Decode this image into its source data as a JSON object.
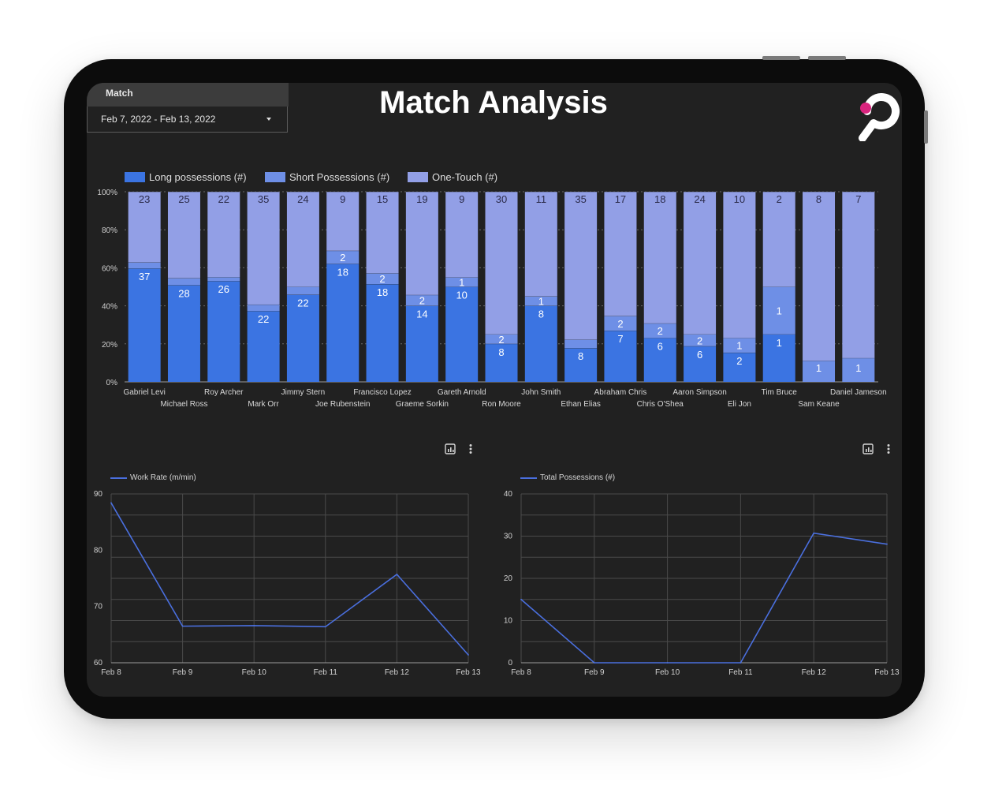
{
  "filter": {
    "label": "Match",
    "value": "Feb 7, 2022 - Feb 13, 2022"
  },
  "page": {
    "title": "Match Analysis"
  },
  "colors": {
    "background": "#212121",
    "long_possessions": "#3b74e2",
    "short_possessions": "#6e8fe6",
    "one_touch": "#929fe6",
    "line_series": "#4a6fde",
    "logo_accent": "#d9247e"
  },
  "chart_data": [
    {
      "type": "bar",
      "stacking": "percent",
      "categories": [
        "Gabriel Levi",
        "Michael Ross",
        "Roy Archer",
        "Mark Orr",
        "Jimmy Stern",
        "Joe Rubenstein",
        "Francisco Lopez",
        "Graeme Sorkin",
        "Gareth Arnold",
        "Ron Moore",
        "John Smith",
        "Ethan Elias",
        "Abraham Chris",
        "Chris O'Shea",
        "Aaron Simpson",
        "Eli Jon",
        "Tim Bruce",
        "Sam Keane",
        "Daniel Jameson"
      ],
      "series": [
        {
          "name": "Long possessions (#)",
          "values": [
            37,
            28,
            26,
            22,
            22,
            18,
            18,
            14,
            10,
            8,
            8,
            8,
            7,
            6,
            6,
            2,
            1,
            0,
            0
          ]
        },
        {
          "name": "Short Possessions (#)",
          "values": [
            2,
            2,
            1,
            2,
            2,
            2,
            2,
            2,
            1,
            2,
            1,
            2,
            2,
            2,
            2,
            1,
            1,
            1,
            1
          ]
        },
        {
          "name": "One-Touch (#)",
          "values": [
            23,
            25,
            22,
            35,
            24,
            9,
            15,
            19,
            9,
            30,
            11,
            35,
            17,
            18,
            24,
            10,
            2,
            8,
            7
          ]
        }
      ],
      "ylim": [
        0,
        100
      ],
      "y_ticks": [
        "0%",
        "20%",
        "40%",
        "60%",
        "80%",
        "100%"
      ],
      "legend_position": "top-left",
      "grid": true
    },
    {
      "type": "line",
      "x": [
        "Feb 8",
        "Feb 9",
        "Feb 10",
        "Feb 11",
        "Feb 12",
        "Feb 13"
      ],
      "series": [
        {
          "name": "Work Rate (m/min)",
          "values": [
            88.4,
            66.5,
            66.6,
            66.4,
            75.7,
            61.4
          ]
        }
      ],
      "ylim": [
        60,
        90
      ],
      "y_ticks": [
        "60",
        "70",
        "80",
        "90"
      ],
      "legend_position": "top-left",
      "grid": true
    },
    {
      "type": "line",
      "x": [
        "Feb 8",
        "Feb 9",
        "Feb 10",
        "Feb 11",
        "Feb 12",
        "Feb 13"
      ],
      "series": [
        {
          "name": "Total Possessions (#)",
          "values": [
            15,
            0,
            0,
            0,
            30.7,
            28.1
          ]
        }
      ],
      "ylim": [
        0,
        40
      ],
      "y_ticks": [
        "0",
        "10",
        "20",
        "30",
        "40"
      ],
      "legend_position": "top-left",
      "grid": true
    }
  ],
  "icons": {
    "chart_menu": "chart-explore-icon",
    "more": "more-vert-icon",
    "dropdown": "caret-down-icon",
    "logo": "brand-logo-icon"
  }
}
